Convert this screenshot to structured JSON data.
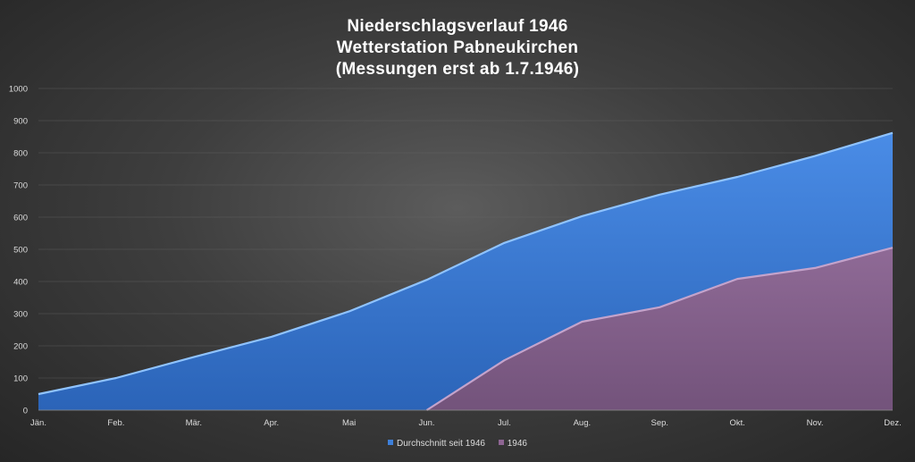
{
  "chart_data": {
    "type": "area",
    "title_lines": [
      "Niederschlagsverlauf 1946",
      "Wetterstation Pabneukirchen",
      "(Messungen erst ab 1.7.1946)"
    ],
    "categories": [
      "Jän.",
      "Feb.",
      "Mär.",
      "Apr.",
      "Mai",
      "Jun.",
      "Jul.",
      "Aug.",
      "Sep.",
      "Okt.",
      "Nov.",
      "Dez."
    ],
    "series": [
      {
        "name": "Durchschnitt seit 1946",
        "color": "#3d7fd9",
        "values": [
          50,
          100,
          165,
          228,
          307,
          405,
          520,
          603,
          670,
          725,
          790,
          862
        ]
      },
      {
        "name": "1946",
        "color": "#8e6593",
        "values": [
          null,
          null,
          null,
          null,
          null,
          0,
          155,
          275,
          320,
          408,
          442,
          505
        ]
      }
    ],
    "ylim": [
      0,
      1000
    ],
    "yticks": [
      "0",
      "100",
      "200",
      "300",
      "400",
      "500",
      "600",
      "700",
      "800",
      "900",
      "1000"
    ],
    "grid": true,
    "legend_position": "bottom"
  }
}
